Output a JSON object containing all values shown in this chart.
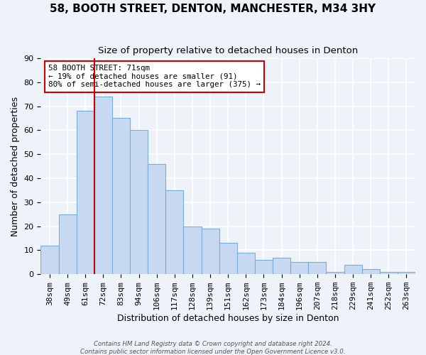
{
  "title": "58, BOOTH STREET, DENTON, MANCHESTER, M34 3HY",
  "subtitle": "Size of property relative to detached houses in Denton",
  "xlabel": "Distribution of detached houses by size in Denton",
  "ylabel": "Number of detached properties",
  "bar_labels": [
    "38sqm",
    "49sqm",
    "61sqm",
    "72sqm",
    "83sqm",
    "94sqm",
    "106sqm",
    "117sqm",
    "128sqm",
    "139sqm",
    "151sqm",
    "162sqm",
    "173sqm",
    "184sqm",
    "196sqm",
    "207sqm",
    "218sqm",
    "229sqm",
    "241sqm",
    "252sqm",
    "263sqm"
  ],
  "bar_values": [
    12,
    25,
    68,
    74,
    65,
    60,
    46,
    35,
    20,
    19,
    13,
    9,
    6,
    7,
    5,
    5,
    1,
    4,
    2,
    1,
    1
  ],
  "bar_color": "#c6d9f1",
  "bar_edge_color": "#7aaddb",
  "vline_x_index": 3,
  "vline_color": "#cc0000",
  "ylim": [
    0,
    90
  ],
  "yticks": [
    0,
    10,
    20,
    30,
    40,
    50,
    60,
    70,
    80,
    90
  ],
  "annotation_title": "58 BOOTH STREET: 71sqm",
  "annotation_line1": "← 19% of detached houses are smaller (91)",
  "annotation_line2": "80% of semi-detached houses are larger (375) →",
  "annotation_box_color": "#cc0000",
  "footer1": "Contains HM Land Registry data © Crown copyright and database right 2024.",
  "footer2": "Contains public sector information licensed under the Open Government Licence v3.0.",
  "background_color": "#eef2f9",
  "grid_color": "#ffffff",
  "title_fontsize": 11,
  "subtitle_fontsize": 9.5,
  "axis_label_fontsize": 9,
  "tick_fontsize": 8
}
